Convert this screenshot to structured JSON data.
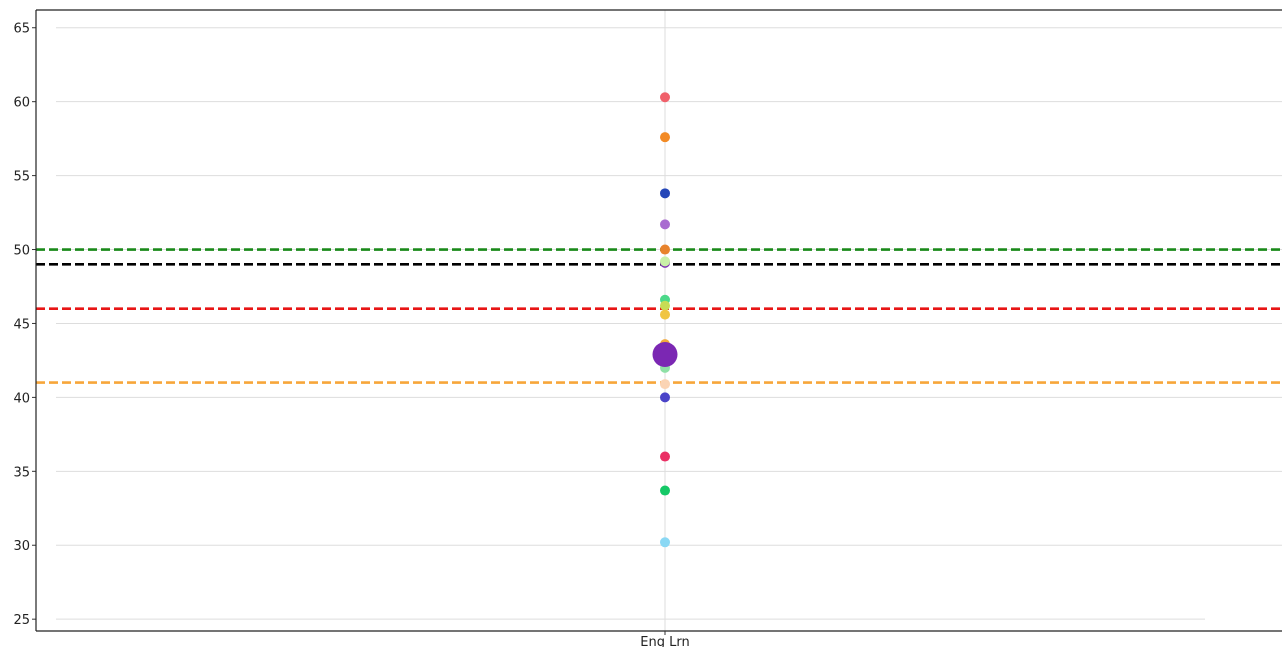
{
  "chart_data": {
    "type": "scatter",
    "title": "",
    "xlabel": "",
    "ylabel": "",
    "categories": [
      "Eng Lrn"
    ],
    "ylim": [
      24.2,
      66.2
    ],
    "yticks": [
      25,
      30,
      35,
      40,
      45,
      50,
      55,
      60,
      65
    ],
    "grid": true,
    "reference_lines": [
      {
        "y": 50,
        "color": "#1a8a1a",
        "style": "dashed"
      },
      {
        "y": 49,
        "color": "#000000",
        "style": "dashed"
      },
      {
        "y": 46,
        "color": "#e81515",
        "style": "dashed"
      },
      {
        "y": 41,
        "color": "#f7a63a",
        "style": "dashed"
      }
    ],
    "points": [
      {
        "x": "Eng Lrn",
        "y": 60.3,
        "color": "#f0606a",
        "size": "normal"
      },
      {
        "x": "Eng Lrn",
        "y": 57.6,
        "color": "#f28a25",
        "size": "normal"
      },
      {
        "x": "Eng Lrn",
        "y": 53.8,
        "color": "#2446b8",
        "size": "normal"
      },
      {
        "x": "Eng Lrn",
        "y": 51.7,
        "color": "#a96bd0",
        "size": "normal"
      },
      {
        "x": "Eng Lrn",
        "y": 50.0,
        "color": "#e8832c",
        "size": "normal"
      },
      {
        "x": "Eng Lrn",
        "y": 49.1,
        "color": "#7e32b5",
        "size": "normal"
      },
      {
        "x": "Eng Lrn",
        "y": 49.2,
        "color": "#c9f0a8",
        "size": "normal"
      },
      {
        "x": "Eng Lrn",
        "y": 46.6,
        "color": "#4cd98a",
        "size": "normal"
      },
      {
        "x": "Eng Lrn",
        "y": 46.2,
        "color": "#c7dc55",
        "size": "normal"
      },
      {
        "x": "Eng Lrn",
        "y": 45.6,
        "color": "#f0c542",
        "size": "normal"
      },
      {
        "x": "Eng Lrn",
        "y": 43.6,
        "color": "#f2a93a",
        "size": "normal"
      },
      {
        "x": "Eng Lrn",
        "y": 42.9,
        "color": "#7b27b3",
        "size": "large"
      },
      {
        "x": "Eng Lrn",
        "y": 42.0,
        "color": "#8ee0a6",
        "size": "normal"
      },
      {
        "x": "Eng Lrn",
        "y": 40.9,
        "color": "#fbd4b4",
        "size": "normal"
      },
      {
        "x": "Eng Lrn",
        "y": 40.0,
        "color": "#4a43c8",
        "size": "normal"
      },
      {
        "x": "Eng Lrn",
        "y": 36.0,
        "color": "#ea2f64",
        "size": "normal"
      },
      {
        "x": "Eng Lrn",
        "y": 33.7,
        "color": "#14c866",
        "size": "normal"
      },
      {
        "x": "Eng Lrn",
        "y": 30.2,
        "color": "#8ad8f4",
        "size": "normal"
      }
    ]
  }
}
